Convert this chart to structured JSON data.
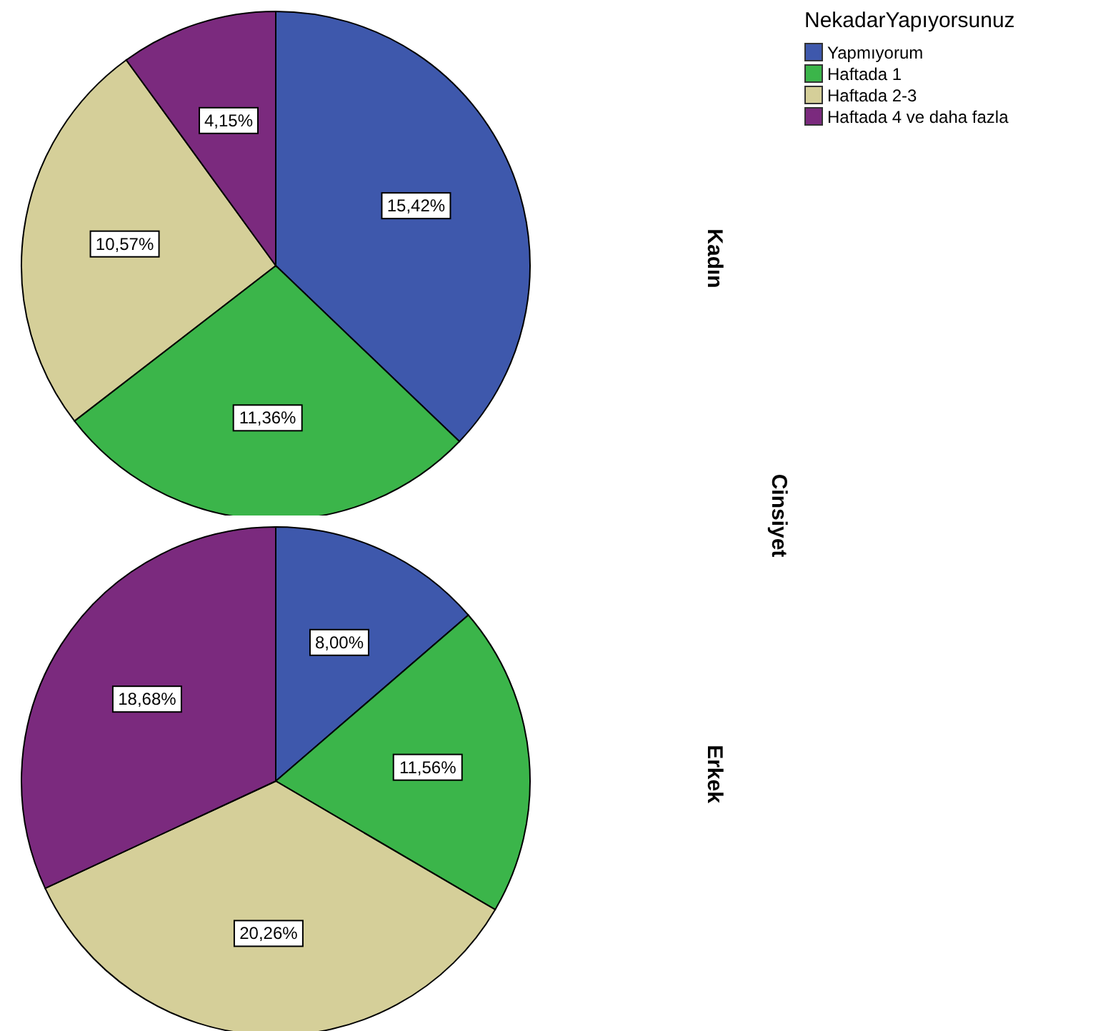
{
  "chart_data": {
    "type": "pie",
    "legend_title": "NekadarYapıyorsunuz",
    "legend": "top right",
    "annotations": [
      "Cinsiyet"
    ],
    "categories": [
      "Yapmıyorum",
      "Haftada 1",
      "Haftada 2-3",
      "Haftada 4 ve daha fazla"
    ],
    "colors": [
      "#3e58ac",
      "#3bb54a",
      "#d5cf99",
      "#7b2a7e"
    ],
    "series": [
      {
        "name": "Kadın",
        "values": [
          15.42,
          11.36,
          10.57,
          4.15
        ],
        "value_labels": [
          "15,42%",
          "11,36%",
          "10,57%",
          "4,15%"
        ]
      },
      {
        "name": "Erkek",
        "values": [
          8.0,
          11.56,
          20.26,
          18.68
        ],
        "value_labels": [
          "8,00%",
          "11,56%",
          "20,26%",
          "18,68%"
        ]
      }
    ]
  }
}
